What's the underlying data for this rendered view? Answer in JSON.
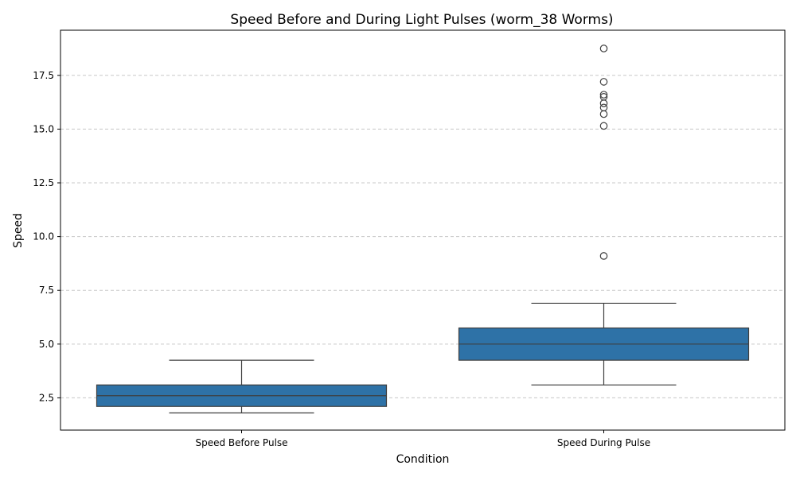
{
  "chart_data": {
    "type": "box",
    "title": "Speed Before and During Light Pulses (worm_38 Worms)",
    "xlabel": "Condition",
    "ylabel": "Speed",
    "ylim": [
      1.0,
      19.6
    ],
    "yticks": [
      2.5,
      5.0,
      7.5,
      10.0,
      12.5,
      15.0,
      17.5
    ],
    "ytick_labels": [
      "2.5",
      "5.0",
      "7.5",
      "10.0",
      "12.5",
      "15.0",
      "17.5"
    ],
    "grid": "y-dashed",
    "box_color": "#2e72a7",
    "line_color": "#3f3f3f",
    "categories": [
      "Speed Before Pulse",
      "Speed During Pulse"
    ],
    "boxes": [
      {
        "category": "Speed Before Pulse",
        "whisker_low": 1.8,
        "q1": 2.1,
        "median": 2.6,
        "q3": 3.1,
        "whisker_high": 4.25,
        "outliers": []
      },
      {
        "category": "Speed During Pulse",
        "whisker_low": 3.1,
        "q1": 4.25,
        "median": 5.0,
        "q3": 5.75,
        "whisker_high": 6.9,
        "outliers": [
          9.1,
          15.15,
          15.7,
          16.0,
          16.2,
          16.5,
          16.6,
          17.2,
          18.75
        ]
      }
    ]
  }
}
